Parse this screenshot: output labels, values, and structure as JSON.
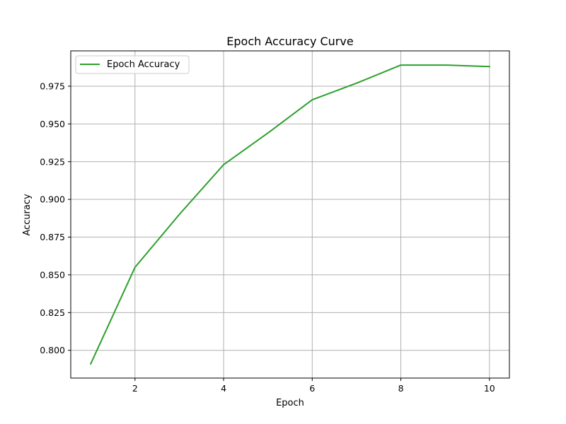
{
  "chart_data": {
    "type": "line",
    "title": "Epoch Accuracy Curve",
    "xlabel": "Epoch",
    "ylabel": "Accuracy",
    "x": [
      1,
      2,
      3,
      4,
      5,
      6,
      7,
      8,
      9,
      10
    ],
    "series": [
      {
        "name": "Epoch Accuracy",
        "color": "#2ca02c",
        "values": [
          0.791,
          0.855,
          0.89,
          0.923,
          0.944,
          0.966,
          0.977,
          0.989,
          0.989,
          0.988
        ]
      }
    ],
    "xlim": [
      0.55,
      10.45
    ],
    "ylim": [
      0.7816,
      0.9984
    ],
    "xticks": [
      2,
      4,
      6,
      8,
      10
    ],
    "xtick_labels": [
      "2",
      "4",
      "6",
      "8",
      "10"
    ],
    "yticks": [
      0.8,
      0.825,
      0.85,
      0.875,
      0.9,
      0.925,
      0.95,
      0.975
    ],
    "ytick_labels": [
      "0.800",
      "0.825",
      "0.850",
      "0.875",
      "0.900",
      "0.925",
      "0.950",
      "0.975"
    ],
    "grid": true,
    "legend_position": "upper-left"
  }
}
